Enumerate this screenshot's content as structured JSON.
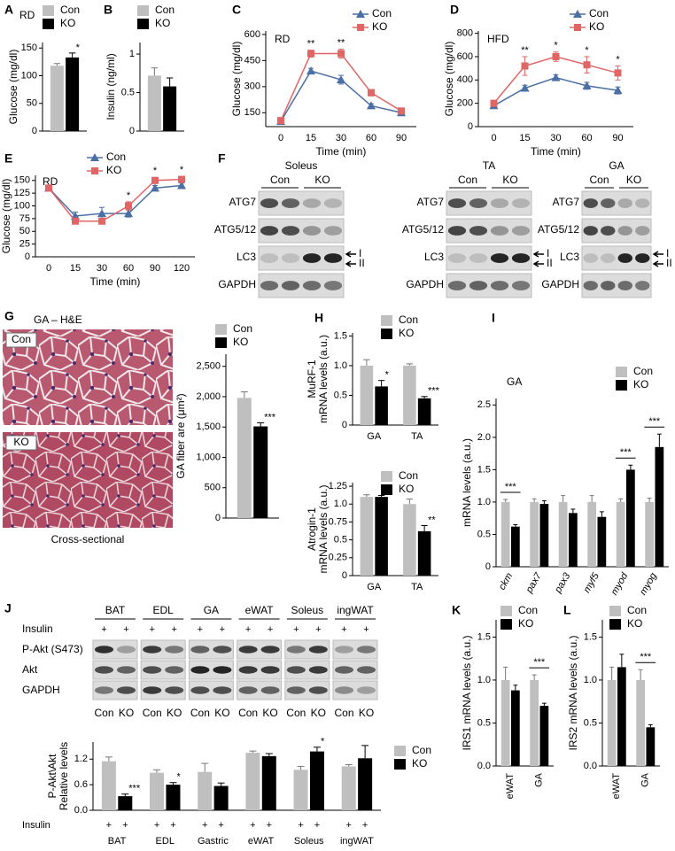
{
  "chart_data": [
    {
      "panel": "A",
      "type": "bar",
      "note": "RD",
      "ylabel": [
        "Glucose (mg/dl)"
      ],
      "categories": [
        null
      ],
      "series": [
        {
          "name": "Con",
          "color": "#bfbfbf",
          "values": [
            118
          ],
          "errors": [
            4
          ]
        },
        {
          "name": "KO",
          "color": "#000000",
          "values": [
            133
          ],
          "errors": [
            8
          ]
        }
      ],
      "annotations": [
        "*"
      ],
      "ylim": [
        0,
        160
      ],
      "yticks": [
        0,
        50,
        100,
        150
      ]
    },
    {
      "panel": "B",
      "type": "bar",
      "ylabel": [
        "Insulin (ng/ml)"
      ],
      "categories": [
        null
      ],
      "series": [
        {
          "name": "Con",
          "color": "#bfbfbf",
          "values": [
            0.72
          ],
          "errors": [
            0.1
          ]
        },
        {
          "name": "KO",
          "color": "#000000",
          "values": [
            0.58
          ],
          "errors": [
            0.11
          ]
        }
      ],
      "ylim": [
        0,
        1.15
      ],
      "yticks": [
        0,
        0.5,
        1
      ]
    },
    {
      "panel": "C",
      "type": "line",
      "note": "RD",
      "ylabel": [
        "Glucose (mg/dl)"
      ],
      "xlabel": "Time (min)",
      "categories": [
        "0",
        "15",
        "30",
        "60",
        "90"
      ],
      "series": [
        {
          "name": "Con",
          "color": "#4a6fa5",
          "marker": "triangle",
          "values": [
            100,
            390,
            340,
            190,
            150
          ],
          "errors": [
            8,
            15,
            25,
            12,
            10
          ]
        },
        {
          "name": "KO",
          "color": "#e06666",
          "marker": "square",
          "values": [
            105,
            490,
            490,
            265,
            160
          ],
          "errors": [
            10,
            20,
            25,
            18,
            12
          ]
        }
      ],
      "annotations": [
        null,
        "**",
        "**",
        null,
        null
      ],
      "ylim": [
        70,
        620
      ],
      "yticks": [
        150,
        300,
        450,
        600
      ]
    },
    {
      "panel": "D",
      "type": "line",
      "note": "HFD",
      "ylabel": [
        "Glucose (mg/dl)"
      ],
      "xlabel": "Time (min)",
      "categories": [
        "0",
        "15",
        "30",
        "60",
        "90"
      ],
      "series": [
        {
          "name": "Con",
          "color": "#4a6fa5",
          "marker": "triangle",
          "values": [
            180,
            330,
            420,
            350,
            310
          ],
          "errors": [
            20,
            25,
            25,
            30,
            30
          ]
        },
        {
          "name": "KO",
          "color": "#e06666",
          "marker": "square",
          "values": [
            200,
            520,
            600,
            530,
            460
          ],
          "errors": [
            25,
            80,
            40,
            70,
            60
          ]
        }
      ],
      "annotations": [
        null,
        "**",
        "*",
        "*",
        "*"
      ],
      "ylim": [
        0,
        820
      ],
      "yticks": [
        0,
        200,
        400,
        600,
        800
      ]
    },
    {
      "panel": "E",
      "type": "line",
      "note": "RD",
      "ylabel": [
        "Glucose (mg/dl)"
      ],
      "xlabel": "Time (min)",
      "categories": [
        "0",
        "15",
        "30",
        "60",
        "90",
        "120"
      ],
      "series": [
        {
          "name": "Con",
          "color": "#4a6fa5",
          "marker": "triangle",
          "values": [
            135,
            80,
            85,
            85,
            135,
            140
          ],
          "errors": [
            4,
            8,
            12,
            7,
            5,
            5
          ]
        },
        {
          "name": "KO",
          "color": "#e06666",
          "marker": "square",
          "values": [
            135,
            70,
            70,
            100,
            150,
            152
          ],
          "errors": [
            4,
            5,
            5,
            8,
            6,
            6
          ]
        }
      ],
      "annotations": [
        null,
        null,
        null,
        "*",
        "*",
        "*"
      ],
      "ylim": [
        0,
        160
      ],
      "yticks": [
        0,
        25,
        50,
        75,
        100,
        125,
        150
      ]
    },
    {
      "type": "bar",
      "ylabel": [
        "GA fiber are (μm²)"
      ],
      "categories": [
        null
      ],
      "series": [
        {
          "name": "Con",
          "color": "#bfbfbf",
          "values": [
            1980
          ],
          "errors": [
            100
          ]
        },
        {
          "name": "KO",
          "color": "#000000",
          "values": [
            1510
          ],
          "errors": [
            60
          ]
        }
      ],
      "annotations": [
        "***"
      ],
      "ylim": [
        0,
        2700
      ],
      "yticks": [
        0,
        500,
        {
          "value": 1000,
          "label": "1,000"
        },
        {
          "value": 1500,
          "label": "1,500"
        },
        {
          "value": 2000,
          "label": "2,000"
        },
        {
          "value": 2500,
          "label": "2,500"
        }
      ]
    },
    {
      "panel": "H",
      "type": "bar",
      "ylabel": [
        "MuRF-1",
        "mRNA levels (a.u.)"
      ],
      "categories": [
        "GA",
        "TA"
      ],
      "series": [
        {
          "name": "Con",
          "color": "#bfbfbf",
          "values": [
            1.0,
            1.0
          ],
          "errors": [
            0.1,
            0.03
          ]
        },
        {
          "name": "KO",
          "color": "#000000",
          "values": [
            0.65,
            0.45
          ],
          "errors": [
            0.1,
            0.03
          ]
        }
      ],
      "annotations": [
        "*",
        "***"
      ],
      "ylim": [
        0,
        1.55
      ],
      "yticks": [
        0,
        0.5,
        {
          "value": 1,
          "label": "1.0"
        },
        1.5
      ]
    },
    {
      "type": "bar",
      "ylabel": [
        "Atrogin-1",
        "mRNA levels (a.u.)"
      ],
      "categories": [
        "GA",
        "TA"
      ],
      "series": [
        {
          "name": "Con",
          "color": "#bfbfbf",
          "values": [
            1.1,
            1.0
          ],
          "errors": [
            0.03,
            0.07
          ]
        },
        {
          "name": "KO",
          "color": "#000000",
          "values": [
            1.1,
            0.62
          ],
          "errors": [
            0.02,
            0.08
          ]
        }
      ],
      "annotations": [
        null,
        "**"
      ],
      "ylim": [
        0,
        1.3
      ],
      "yticks": [
        0,
        0.25,
        0.5,
        0.75,
        {
          "value": 1,
          "label": "1.0"
        },
        1.25
      ]
    },
    {
      "panel": "I",
      "type": "bar",
      "note": "GA",
      "ylabel": [
        "mRNA levels (a.u.)"
      ],
      "categories": [
        "ckm",
        "pax7",
        "pax3",
        "myf5",
        "myod",
        "myog"
      ],
      "series": [
        {
          "name": "Con",
          "color": "#bfbfbf",
          "values": [
            1.0,
            1.0,
            1.0,
            1.0,
            1.0,
            1.0
          ],
          "errors": [
            0.04,
            0.05,
            0.1,
            0.1,
            0.05,
            0.06
          ]
        },
        {
          "name": "KO",
          "color": "#000000",
          "values": [
            0.62,
            0.97,
            0.83,
            0.77,
            1.5,
            1.85
          ],
          "errors": [
            0.03,
            0.05,
            0.06,
            0.08,
            0.07,
            0.2
          ]
        }
      ],
      "annotations": [
        "***",
        null,
        null,
        null,
        "***",
        "***"
      ],
      "ylim": [
        0,
        2.6
      ],
      "yticks": [
        0,
        0.5,
        {
          "value": 1,
          "label": "1.0"
        },
        1.5,
        {
          "value": 2,
          "label": "2.0"
        },
        2.5
      ]
    },
    {
      "type": "bar",
      "ylabel": [
        "P-Akt\\Akt",
        "Relative levels"
      ],
      "categories": [
        "BAT",
        "EDL",
        "Gastric",
        "eWAT",
        "Soleus",
        "ingWAT"
      ],
      "series": [
        {
          "name": "Con",
          "color": "#bfbfbf",
          "values": [
            1.15,
            0.88,
            0.9,
            1.35,
            0.95,
            1.03
          ],
          "errors": [
            0.1,
            0.07,
            0.2,
            0.04,
            0.08,
            0.04
          ]
        },
        {
          "name": "KO",
          "color": "#000000",
          "values": [
            0.33,
            0.6,
            0.57,
            1.27,
            1.38,
            1.22
          ],
          "errors": [
            0.05,
            0.05,
            0.07,
            0.06,
            0.1,
            0.3
          ]
        }
      ],
      "annotations": [
        "***",
        "*",
        null,
        null,
        "*",
        null
      ],
      "ylim": [
        0,
        1.6
      ],
      "yticks": [
        {
          "value": 0,
          "label": "0.0"
        },
        0.6,
        1.2
      ]
    },
    {
      "panel": "K",
      "type": "bar",
      "ylabel": [
        "IRS1 mRNA levels (a.u.)"
      ],
      "categories": [
        "eWAT",
        "GA"
      ],
      "series": [
        {
          "name": "Con",
          "color": "#bfbfbf",
          "values": [
            1.0,
            1.0
          ],
          "errors": [
            0.15,
            0.06
          ]
        },
        {
          "name": "KO",
          "color": "#000000",
          "values": [
            0.88,
            0.7
          ],
          "errors": [
            0.06,
            0.03
          ]
        }
      ],
      "annotations": [
        null,
        "***"
      ],
      "ylim": [
        0,
        1.7
      ],
      "yticks": [
        {
          "value": 0,
          "label": "0.0"
        },
        0.5,
        {
          "value": 1,
          "label": "1.0"
        },
        1.5
      ]
    },
    {
      "panel": "L",
      "type": "bar",
      "ylabel": [
        "IRS2 mRNA levels (a.u.)"
      ],
      "categories": [
        "eWAT",
        "GA"
      ],
      "series": [
        {
          "name": "Con",
          "color": "#bfbfbf",
          "values": [
            1.0,
            1.0
          ],
          "errors": [
            0.15,
            0.12
          ]
        },
        {
          "name": "KO",
          "color": "#000000",
          "values": [
            1.15,
            0.45
          ],
          "errors": [
            0.15,
            0.03
          ]
        }
      ],
      "annotations": [
        null,
        "***"
      ],
      "ylim": [
        0,
        1.7
      ],
      "yticks": [
        {
          "value": 0,
          "label": "0.0"
        },
        0.5,
        {
          "value": 1,
          "label": "1.0"
        },
        1.5
      ]
    }
  ],
  "blots_F": {
    "panel": "F",
    "groups": [
      {
        "name": "Soleus",
        "columns": [
          "Con",
          "KO"
        ],
        "rows": [
          "ATG7",
          "ATG5/12",
          "LC3",
          "GAPDH"
        ],
        "arrows": [
          "I",
          "II"
        ]
      },
      {
        "name": "TA",
        "columns": [
          "Con",
          "KO"
        ],
        "rows": [
          "ATG7",
          "ATG5/12",
          "LC3",
          "GAPDH"
        ],
        "arrows": [
          "I",
          "II"
        ]
      },
      {
        "name": "GA",
        "columns": [
          "Con",
          "KO"
        ],
        "rows": [
          "ATG7",
          "ATG5/12",
          "LC3",
          "GAPDH"
        ],
        "arrows": [
          "I",
          "II"
        ]
      }
    ]
  },
  "histology": {
    "panel": "G",
    "title": "GA – H&E",
    "images": [
      "Con",
      "KO"
    ],
    "caption": "Cross-sectional"
  },
  "blots_J": {
    "panel": "J",
    "row_labels": [
      "Insulin",
      "P-Akt (S473)",
      "Akt",
      "GAPDH"
    ],
    "tissues": [
      "BAT",
      "EDL",
      "GA",
      "eWAT",
      "Soleus",
      "ingWAT"
    ],
    "insulin": [
      [
        "+",
        "+"
      ],
      [
        "+",
        "+"
      ],
      [
        "+",
        "+"
      ],
      [
        "+",
        "+"
      ],
      [
        "+",
        "+"
      ],
      [
        "+",
        "+"
      ]
    ],
    "columns": [
      "Con",
      "KO"
    ]
  }
}
